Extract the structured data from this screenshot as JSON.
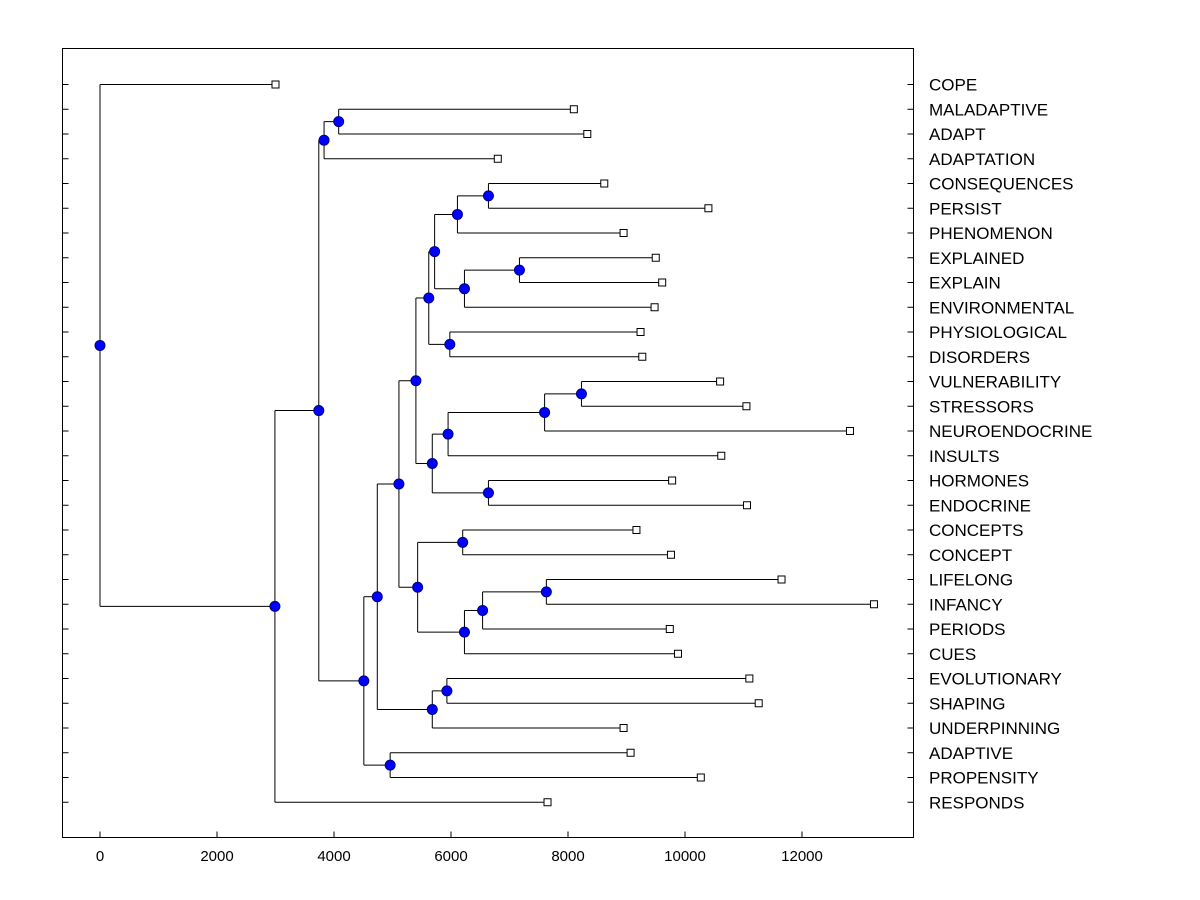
{
  "chart_data": {
    "type": "dendrogram",
    "orientation": "horizontal",
    "xlim": [
      -650,
      13850
    ],
    "x_ticks": [
      0,
      2000,
      4000,
      6000,
      8000,
      10000,
      12000
    ],
    "x_tick_labels": [
      "0",
      "2000",
      "4000",
      "6000",
      "8000",
      "10000",
      "12000"
    ],
    "leaves": [
      {
        "id": "l0",
        "label": "COPE",
        "x": 3000
      },
      {
        "id": "l1",
        "label": "MALADAPTIVE",
        "x": 8100
      },
      {
        "id": "l2",
        "label": "ADAPT",
        "x": 8330
      },
      {
        "id": "l3",
        "label": "ADAPTATION",
        "x": 6800
      },
      {
        "id": "l4",
        "label": "CONSEQUENCES",
        "x": 8620
      },
      {
        "id": "l5",
        "label": "PERSIST",
        "x": 10400
      },
      {
        "id": "l6",
        "label": "PHENOMENON",
        "x": 8950
      },
      {
        "id": "l7",
        "label": "EXPLAINED",
        "x": 9500
      },
      {
        "id": "l8",
        "label": "EXPLAIN",
        "x": 9610
      },
      {
        "id": "l9",
        "label": "ENVIRONMENTAL",
        "x": 9480
      },
      {
        "id": "l10",
        "label": "PHYSIOLOGICAL",
        "x": 9240
      },
      {
        "id": "l11",
        "label": "DISORDERS",
        "x": 9270
      },
      {
        "id": "l12",
        "label": "VULNERABILITY",
        "x": 10600
      },
      {
        "id": "l13",
        "label": "STRESSORS",
        "x": 11050
      },
      {
        "id": "l14",
        "label": "NEUROENDOCRINE",
        "x": 12820
      },
      {
        "id": "l15",
        "label": "INSULTS",
        "x": 10620
      },
      {
        "id": "l16",
        "label": "HORMONES",
        "x": 9780
      },
      {
        "id": "l17",
        "label": "ENDOCRINE",
        "x": 11060
      },
      {
        "id": "l18",
        "label": "CONCEPTS",
        "x": 9170
      },
      {
        "id": "l19",
        "label": "CONCEPT",
        "x": 9760
      },
      {
        "id": "l20",
        "label": "LIFELONG",
        "x": 11650
      },
      {
        "id": "l21",
        "label": "INFANCY",
        "x": 13230
      },
      {
        "id": "l22",
        "label": "PERIODS",
        "x": 9740
      },
      {
        "id": "l23",
        "label": "CUES",
        "x": 9880
      },
      {
        "id": "l24",
        "label": "EVOLUTIONARY",
        "x": 11100
      },
      {
        "id": "l25",
        "label": "SHAPING",
        "x": 11260
      },
      {
        "id": "l26",
        "label": "UNDERPINNING",
        "x": 8950
      },
      {
        "id": "l27",
        "label": "ADAPTIVE",
        "x": 9070
      },
      {
        "id": "l28",
        "label": "PROPENSITY",
        "x": 10270
      },
      {
        "id": "l29",
        "label": "RESPONDS",
        "x": 7650
      }
    ],
    "nodes": [
      {
        "id": "n1",
        "x": 4080,
        "children": [
          "l1",
          "l2"
        ]
      },
      {
        "id": "n2",
        "x": 3830,
        "children": [
          "n1",
          "l3"
        ]
      },
      {
        "id": "n3",
        "x": 6640,
        "children": [
          "l4",
          "l5"
        ]
      },
      {
        "id": "n4",
        "x": 6110,
        "children": [
          "n3",
          "l6"
        ]
      },
      {
        "id": "n5",
        "x": 7170,
        "children": [
          "l7",
          "l8"
        ]
      },
      {
        "id": "n6",
        "x": 6230,
        "children": [
          "n5",
          "l9"
        ]
      },
      {
        "id": "n7",
        "x": 5720,
        "children": [
          "n4",
          "n6"
        ]
      },
      {
        "id": "n8",
        "x": 5980,
        "children": [
          "l10",
          "l11"
        ]
      },
      {
        "id": "n9",
        "x": 5620,
        "children": [
          "n7",
          "n8"
        ]
      },
      {
        "id": "n10",
        "x": 8230,
        "children": [
          "l12",
          "l13"
        ]
      },
      {
        "id": "n11",
        "x": 7600,
        "children": [
          "n10",
          "l14"
        ]
      },
      {
        "id": "n12",
        "x": 5950,
        "children": [
          "n11",
          "l15"
        ]
      },
      {
        "id": "n13",
        "x": 6640,
        "children": [
          "l16",
          "l17"
        ]
      },
      {
        "id": "n14",
        "x": 5680,
        "children": [
          "n12",
          "n13"
        ]
      },
      {
        "id": "n15",
        "x": 5400,
        "children": [
          "n9",
          "n14"
        ]
      },
      {
        "id": "n16",
        "x": 6200,
        "children": [
          "l18",
          "l19"
        ]
      },
      {
        "id": "n17",
        "x": 7630,
        "children": [
          "l20",
          "l21"
        ]
      },
      {
        "id": "n18",
        "x": 6540,
        "children": [
          "n17",
          "l22"
        ]
      },
      {
        "id": "n19",
        "x": 6230,
        "children": [
          "n18",
          "l23"
        ]
      },
      {
        "id": "n20",
        "x": 5430,
        "children": [
          "n16",
          "n19"
        ]
      },
      {
        "id": "n21",
        "x": 5110,
        "children": [
          "n15",
          "n20"
        ]
      },
      {
        "id": "n22",
        "x": 5930,
        "children": [
          "l24",
          "l25"
        ]
      },
      {
        "id": "n23",
        "x": 5680,
        "children": [
          "n22",
          "l26"
        ]
      },
      {
        "id": "n24",
        "x": 4740,
        "children": [
          "n21",
          "n23"
        ]
      },
      {
        "id": "n25",
        "x": 4960,
        "children": [
          "l27",
          "l28"
        ]
      },
      {
        "id": "n26",
        "x": 4510,
        "children": [
          "n24",
          "n25"
        ]
      },
      {
        "id": "n27",
        "x": 3740,
        "children": [
          "n2",
          "n26"
        ]
      },
      {
        "id": "n28",
        "x": 2990,
        "children": [
          "n27",
          "l29"
        ]
      },
      {
        "id": "n29",
        "x": 0,
        "children": [
          "l0",
          "n28"
        ]
      }
    ],
    "colors": {
      "node_fill": "#0000ff",
      "node_stroke": "#000080",
      "line": "#000000",
      "leaf_fill": "#ffffff",
      "background": "#ffffff"
    }
  }
}
